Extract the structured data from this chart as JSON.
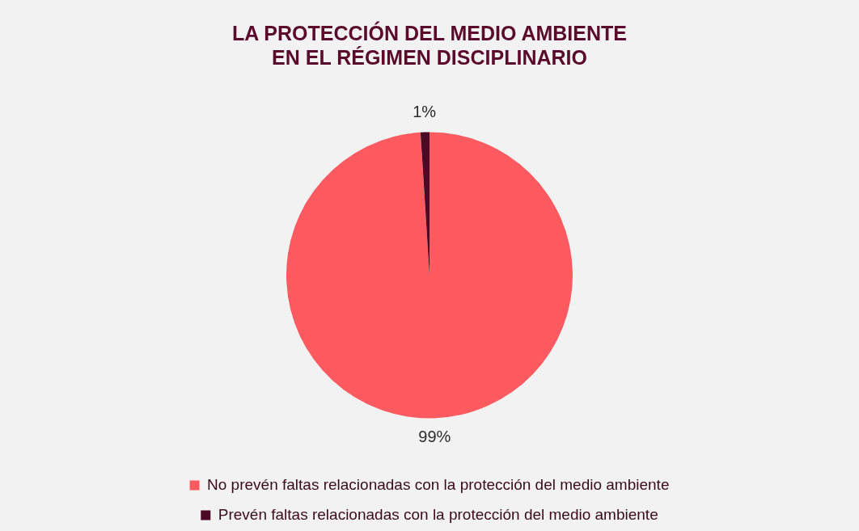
{
  "chart_data": {
    "type": "pie",
    "title": "LA PROTECCIÓN DEL MEDIO AMBIENTE\nEN EL RÉGIMEN DISCIPLINARIO",
    "categories": [
      "No prevén faltas relacionadas con la protección del medio ambiente",
      "Prevén faltas relacionadas con la protección del medio ambiente"
    ],
    "values": [
      99,
      1
    ],
    "colors": [
      "#ff5a5f",
      "#4a0a24"
    ],
    "value_labels": [
      "99%",
      "1%"
    ],
    "legend": "bottom"
  }
}
